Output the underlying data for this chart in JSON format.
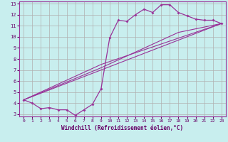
{
  "xlabel": "Windchill (Refroidissement éolien,°C)",
  "background_color": "#c8eeee",
  "grid_color": "#b0b0b0",
  "line_color": "#993399",
  "xlim": [
    -0.5,
    23.5
  ],
  "ylim": [
    2.8,
    13.2
  ],
  "xticks": [
    0,
    1,
    2,
    3,
    4,
    5,
    6,
    7,
    8,
    9,
    10,
    11,
    12,
    13,
    14,
    15,
    16,
    17,
    18,
    19,
    20,
    21,
    22,
    23
  ],
  "yticks": [
    3,
    4,
    5,
    6,
    7,
    8,
    9,
    10,
    11,
    12,
    13
  ],
  "line1_x": [
    0,
    1,
    2,
    3,
    4,
    5,
    6,
    7,
    8,
    9,
    10,
    11,
    12,
    13,
    14,
    15,
    16,
    17,
    18,
    19,
    20,
    21,
    22,
    23
  ],
  "line1_y": [
    4.3,
    4.0,
    3.5,
    3.6,
    3.4,
    3.4,
    2.9,
    3.4,
    3.9,
    5.3,
    9.9,
    11.5,
    11.4,
    12.0,
    12.5,
    12.2,
    12.9,
    12.9,
    12.2,
    11.9,
    11.6,
    11.5,
    11.5,
    11.2
  ],
  "line2_x": [
    0,
    23
  ],
  "line2_y": [
    4.3,
    11.2
  ],
  "line3_x": [
    0,
    9,
    23
  ],
  "line3_y": [
    4.3,
    7.5,
    11.2
  ],
  "line4_x": [
    0,
    9,
    18,
    23
  ],
  "line4_y": [
    4.3,
    7.2,
    10.4,
    11.2
  ]
}
